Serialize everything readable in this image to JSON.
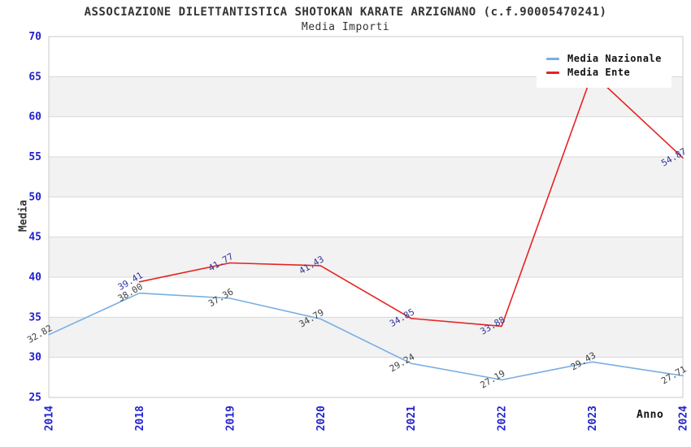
{
  "header": {
    "title": "ASSOCIAZIONE DILETTANTISTICA SHOTOKAN KARATE ARZIGNANO (c.f.90005470241)",
    "subtitle": "Media Importi"
  },
  "axes": {
    "y_title": "Media",
    "x_title": "Anno",
    "y_ticks": [
      25,
      30,
      35,
      40,
      45,
      50,
      55,
      60,
      65,
      70
    ],
    "x_ticks": [
      "2014",
      "2018",
      "2019",
      "2020",
      "2021",
      "2022",
      "2023",
      "2024"
    ],
    "tick_color": "#2222cc"
  },
  "legend": {
    "items": [
      {
        "label": "Media Nazionale",
        "color": "#79aee3"
      },
      {
        "label": "Media Ente",
        "color": "#e62222"
      }
    ]
  },
  "chart_data": {
    "type": "line",
    "title": "ASSOCIAZIONE DILETTANTISTICA SHOTOKAN KARATE ARZIGNANO (c.f.90005470241)",
    "subtitle": "Media Importi",
    "xlabel": "Anno",
    "ylabel": "Media",
    "ylim": [
      25,
      70
    ],
    "grid": true,
    "legend_position": "top-right",
    "categories": [
      "2014",
      "2018",
      "2019",
      "2020",
      "2021",
      "2022",
      "2023",
      "2024"
    ],
    "series": [
      {
        "name": "Media Nazionale",
        "color": "#79aee3",
        "label_color": "#404040",
        "values": [
          32.82,
          38.0,
          37.36,
          34.79,
          29.24,
          27.19,
          29.43,
          27.71
        ],
        "labels": [
          "32.82",
          "38.00",
          "37.36",
          "34.79",
          "29.24",
          "27.19",
          "29.43",
          "27.71"
        ]
      },
      {
        "name": "Media Ente",
        "color": "#e62222",
        "label_color": "#34349c",
        "values": [
          null,
          39.41,
          41.77,
          41.43,
          34.85,
          33.88,
          65.4,
          54.87
        ],
        "labels": [
          null,
          "39.41",
          "41.77",
          "41.43",
          "34.85",
          "33.88",
          "",
          "54.87"
        ],
        "note": "2023 point estimated ~65.4; its data label is hidden behind the legend box"
      }
    ]
  },
  "colors": {
    "band_gray": "#f2f2f2",
    "grid_line": "#d9d9d9",
    "plot_border": "#c9c9c9"
  }
}
